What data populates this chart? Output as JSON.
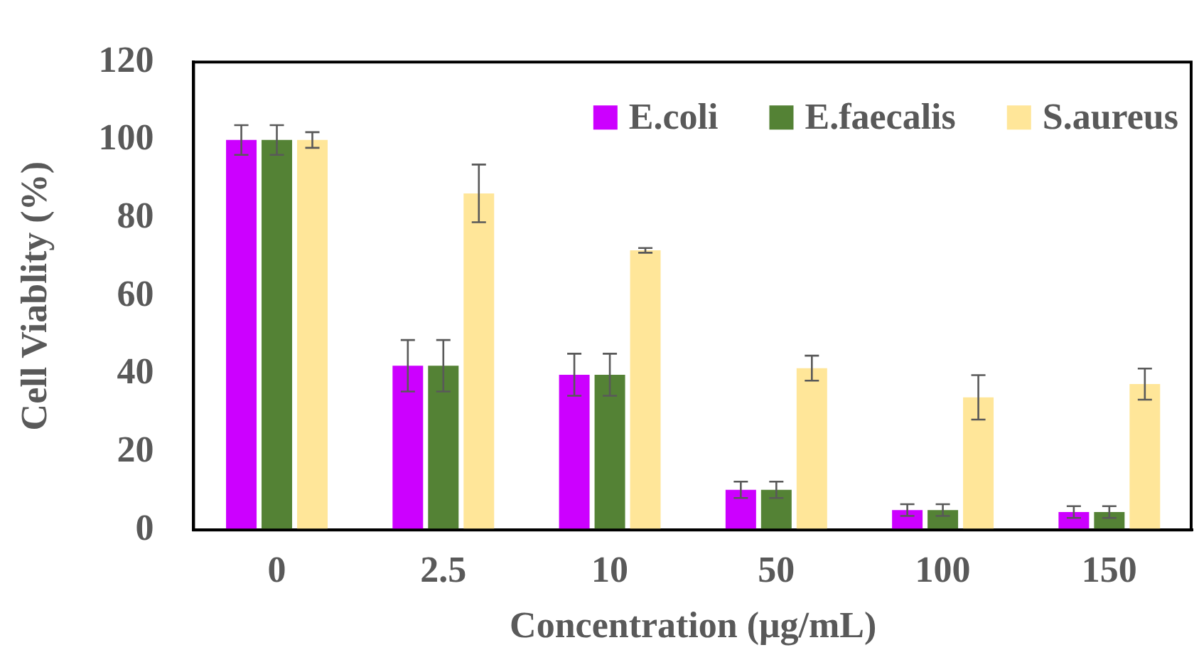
{
  "chart_data": {
    "type": "bar",
    "xlabel": "Concentration (μg/mL)",
    "ylabel": "Cell Viablity (%)",
    "categories": [
      "0",
      "2.5",
      "10",
      "50",
      "100",
      "150"
    ],
    "series": [
      {
        "name": "E.coli",
        "color": "#cc00ff",
        "values": [
          100,
          42.1,
          39.8,
          10.3,
          5.1,
          4.6
        ],
        "errors": [
          3.8,
          6.6,
          5.4,
          2.1,
          1.5,
          1.5
        ]
      },
      {
        "name": "E.faecalis",
        "color": "#548235",
        "values": [
          100,
          42.1,
          39.8,
          10.3,
          5.1,
          4.6
        ],
        "errors": [
          3.8,
          6.6,
          5.4,
          2.1,
          1.5,
          1.5
        ]
      },
      {
        "name": "S.aureus",
        "color": "#ffe699",
        "values": [
          100,
          86.3,
          71.7,
          41.5,
          34.0,
          37.4
        ],
        "errors": [
          2.0,
          7.4,
          0.6,
          3.2,
          5.7,
          4.0
        ]
      }
    ],
    "ylim": [
      0,
      120
    ],
    "yticks": [
      0,
      20,
      40,
      60,
      80,
      100,
      120
    ],
    "grid": false,
    "legend": "top right"
  }
}
